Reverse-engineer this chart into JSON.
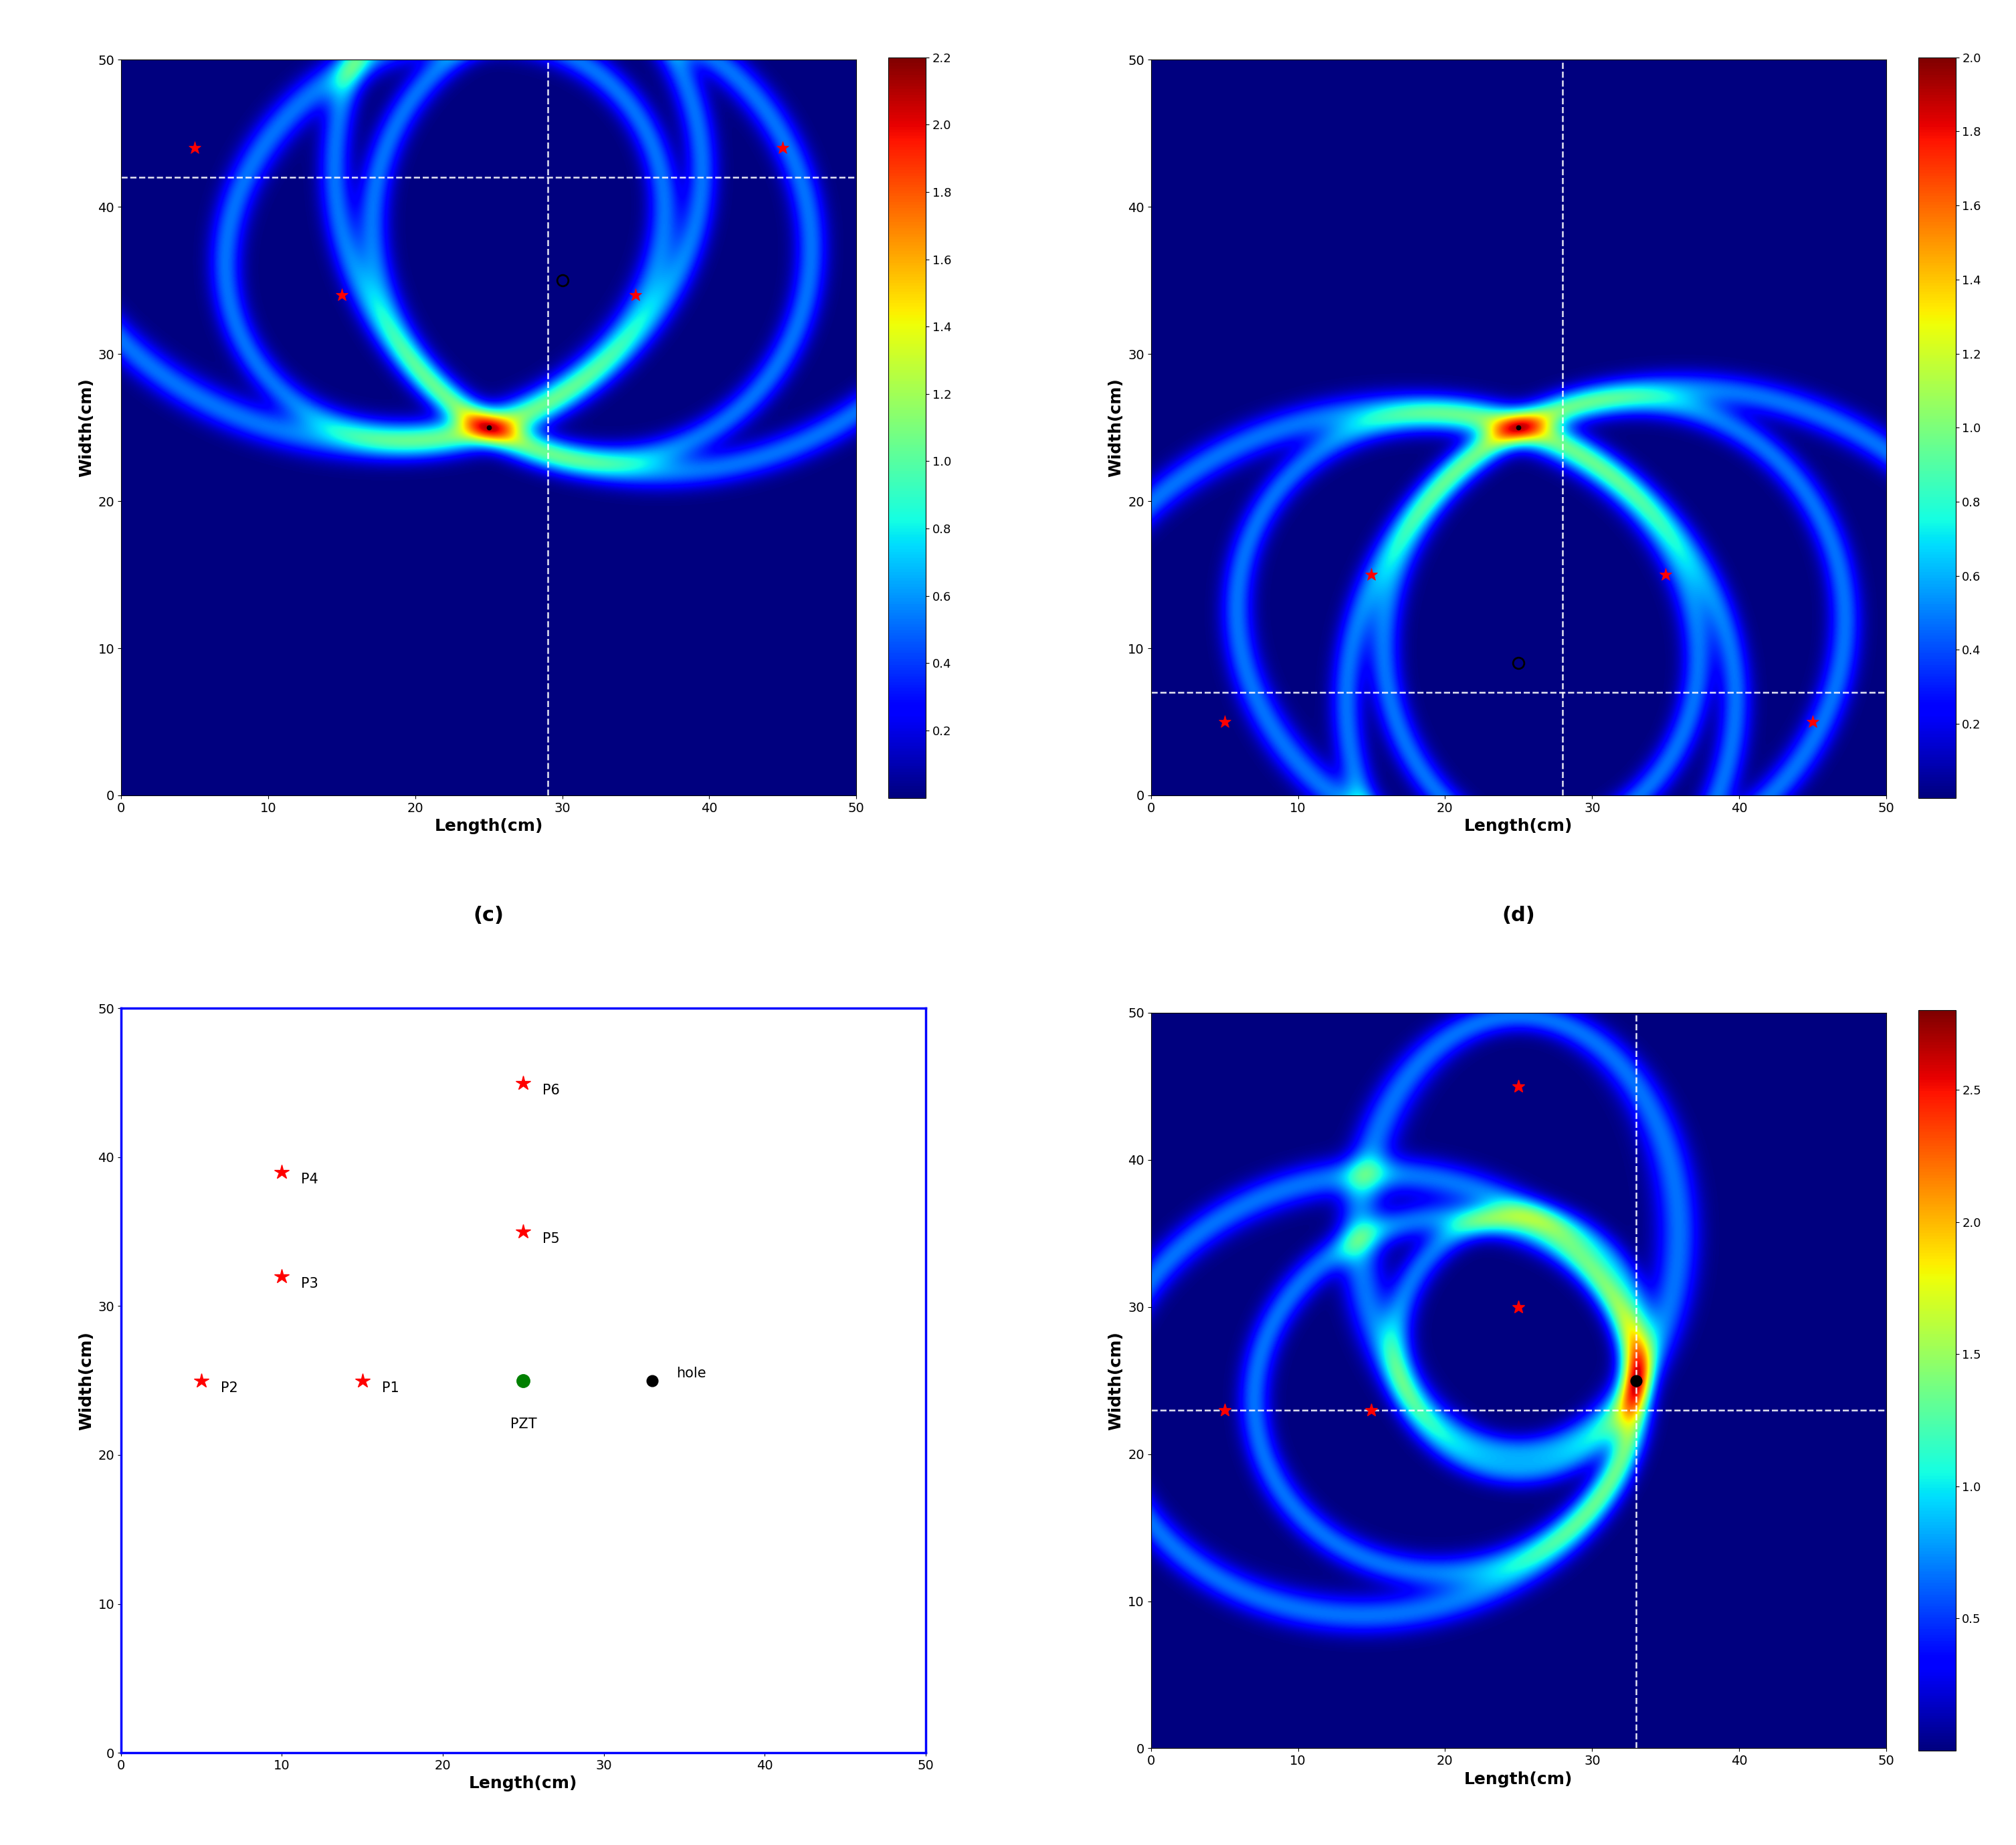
{
  "panel_c": {
    "xlabel": "Length(cm)",
    "ylabel": "Width(cm)",
    "xlim": [
      0,
      50
    ],
    "ylim": [
      0,
      50
    ],
    "vmax": 2.2,
    "crosshair_x": 29,
    "crosshair_y": 42,
    "red_stars": [
      [
        5,
        44
      ],
      [
        45,
        44
      ],
      [
        15,
        34
      ],
      [
        35,
        34
      ]
    ],
    "black_dot": [
      25,
      25
    ],
    "black_circle": [
      30,
      35
    ],
    "pzt": [
      29,
      42
    ],
    "hole": [
      25,
      25
    ],
    "all_sensors": [
      [
        5,
        44
      ],
      [
        45,
        44
      ],
      [
        15,
        34
      ],
      [
        35,
        34
      ]
    ],
    "cbar_ticks": [
      0.2,
      0.4,
      0.6,
      0.8,
      1.0,
      1.2,
      1.4,
      1.6,
      1.8,
      2.0,
      2.2
    ],
    "sigma": 1.5
  },
  "panel_d": {
    "xlabel": "Length(cm)",
    "ylabel": "Width(cm)",
    "xlim": [
      0,
      50
    ],
    "ylim": [
      0,
      50
    ],
    "vmax": 2.0,
    "crosshair_x": 28,
    "crosshair_y": 7,
    "red_stars": [
      [
        5,
        5
      ],
      [
        45,
        5
      ],
      [
        15,
        15
      ],
      [
        35,
        15
      ]
    ],
    "black_dot": [
      25,
      25
    ],
    "black_circle": [
      25,
      9
    ],
    "pzt": [
      28,
      7
    ],
    "hole": [
      25,
      25
    ],
    "all_sensors": [
      [
        5,
        5
      ],
      [
        45,
        5
      ],
      [
        15,
        15
      ],
      [
        35,
        15
      ]
    ],
    "cbar_ticks": [
      0.2,
      0.4,
      0.6,
      0.8,
      1.0,
      1.2,
      1.4,
      1.6,
      1.8,
      2.0
    ],
    "sigma": 1.5
  },
  "panel_e": {
    "xlabel": "Length(cm)",
    "ylabel": "Width(cm)",
    "xlim": [
      0,
      50
    ],
    "ylim": [
      0,
      50
    ],
    "points": {
      "P1": [
        15,
        25
      ],
      "P2": [
        5,
        25
      ],
      "P3": [
        10,
        32
      ],
      "P4": [
        10,
        39
      ],
      "P5": [
        25,
        35
      ],
      "P6": [
        25,
        45
      ]
    },
    "pzt": [
      25,
      25
    ],
    "hole": [
      33,
      25
    ]
  },
  "panel_f": {
    "xlabel": "Length(cm)",
    "ylabel": "Width(cm)",
    "xlim": [
      0,
      50
    ],
    "ylim": [
      0,
      50
    ],
    "vmax": 2.8,
    "crosshair_x": 33,
    "crosshair_y": 23,
    "red_stars": [
      [
        25,
        45
      ],
      [
        5,
        23
      ],
      [
        25,
        30
      ],
      [
        15,
        23
      ]
    ],
    "black_dot": [
      33,
      25
    ],
    "pzt": [
      25,
      25
    ],
    "hole": [
      33,
      25
    ],
    "all_sensors": [
      [
        25,
        45
      ],
      [
        5,
        23
      ],
      [
        25,
        30
      ],
      [
        15,
        23
      ]
    ],
    "cbar_ticks": [
      0.5,
      1.0,
      1.5,
      2.0,
      2.5
    ],
    "sigma": 1.5
  }
}
